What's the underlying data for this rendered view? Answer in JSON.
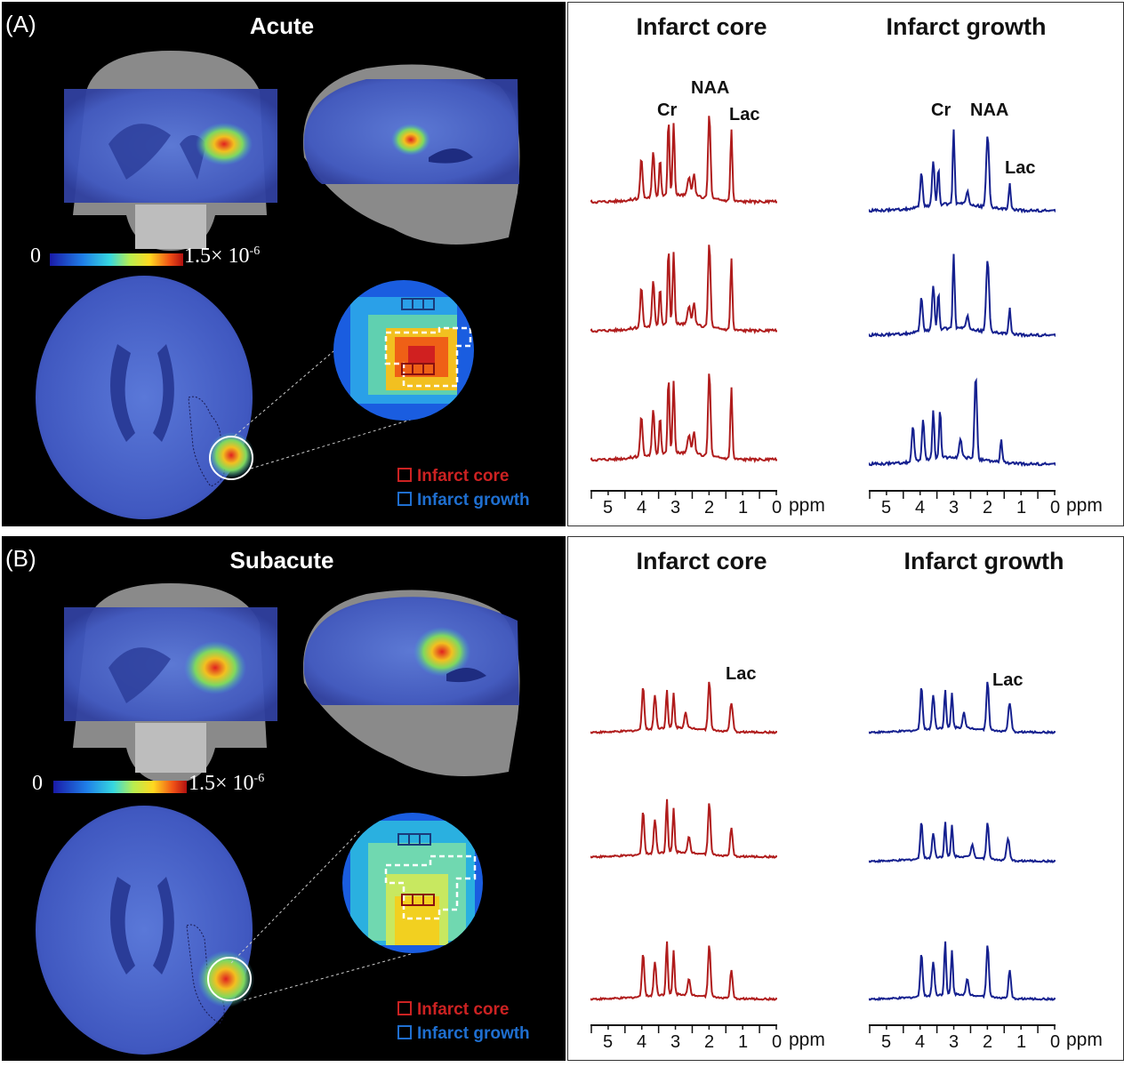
{
  "panels": [
    {
      "label": "(A)",
      "phase": "Acute",
      "colorbar": {
        "min": "0",
        "max": "1.5× 10",
        "max_exp": "-6"
      },
      "legend": {
        "core": "Infarct core",
        "growth": "Infarct growth"
      },
      "columns": [
        {
          "title": "Infarct core",
          "peaks": [
            "Cr",
            "NAA",
            "Lac"
          ]
        },
        {
          "title": "Infarct growth",
          "peaks": [
            "Cr",
            "NAA",
            "Lac"
          ]
        }
      ],
      "axis_ticks": [
        "5",
        "4",
        "3",
        "2",
        "1",
        "0"
      ],
      "axis_unit": "ppm"
    },
    {
      "label": "(B)",
      "phase": "Subacute",
      "colorbar": {
        "min": "0",
        "max": "1.5× 10",
        "max_exp": "-6"
      },
      "legend": {
        "core": "Infarct core",
        "growth": "Infarct growth"
      },
      "columns": [
        {
          "title": "Infarct core",
          "peaks": [
            "Lac"
          ]
        },
        {
          "title": "Infarct growth",
          "peaks": [
            "Lac"
          ]
        }
      ],
      "axis_ticks": [
        "5",
        "4",
        "3",
        "2",
        "1",
        "0"
      ],
      "axis_unit": "ppm"
    }
  ],
  "colors": {
    "core": "#b01c1c",
    "growth": "#15208f",
    "core_legend": "#cc2222",
    "growth_legend": "#1f6fd0"
  }
}
